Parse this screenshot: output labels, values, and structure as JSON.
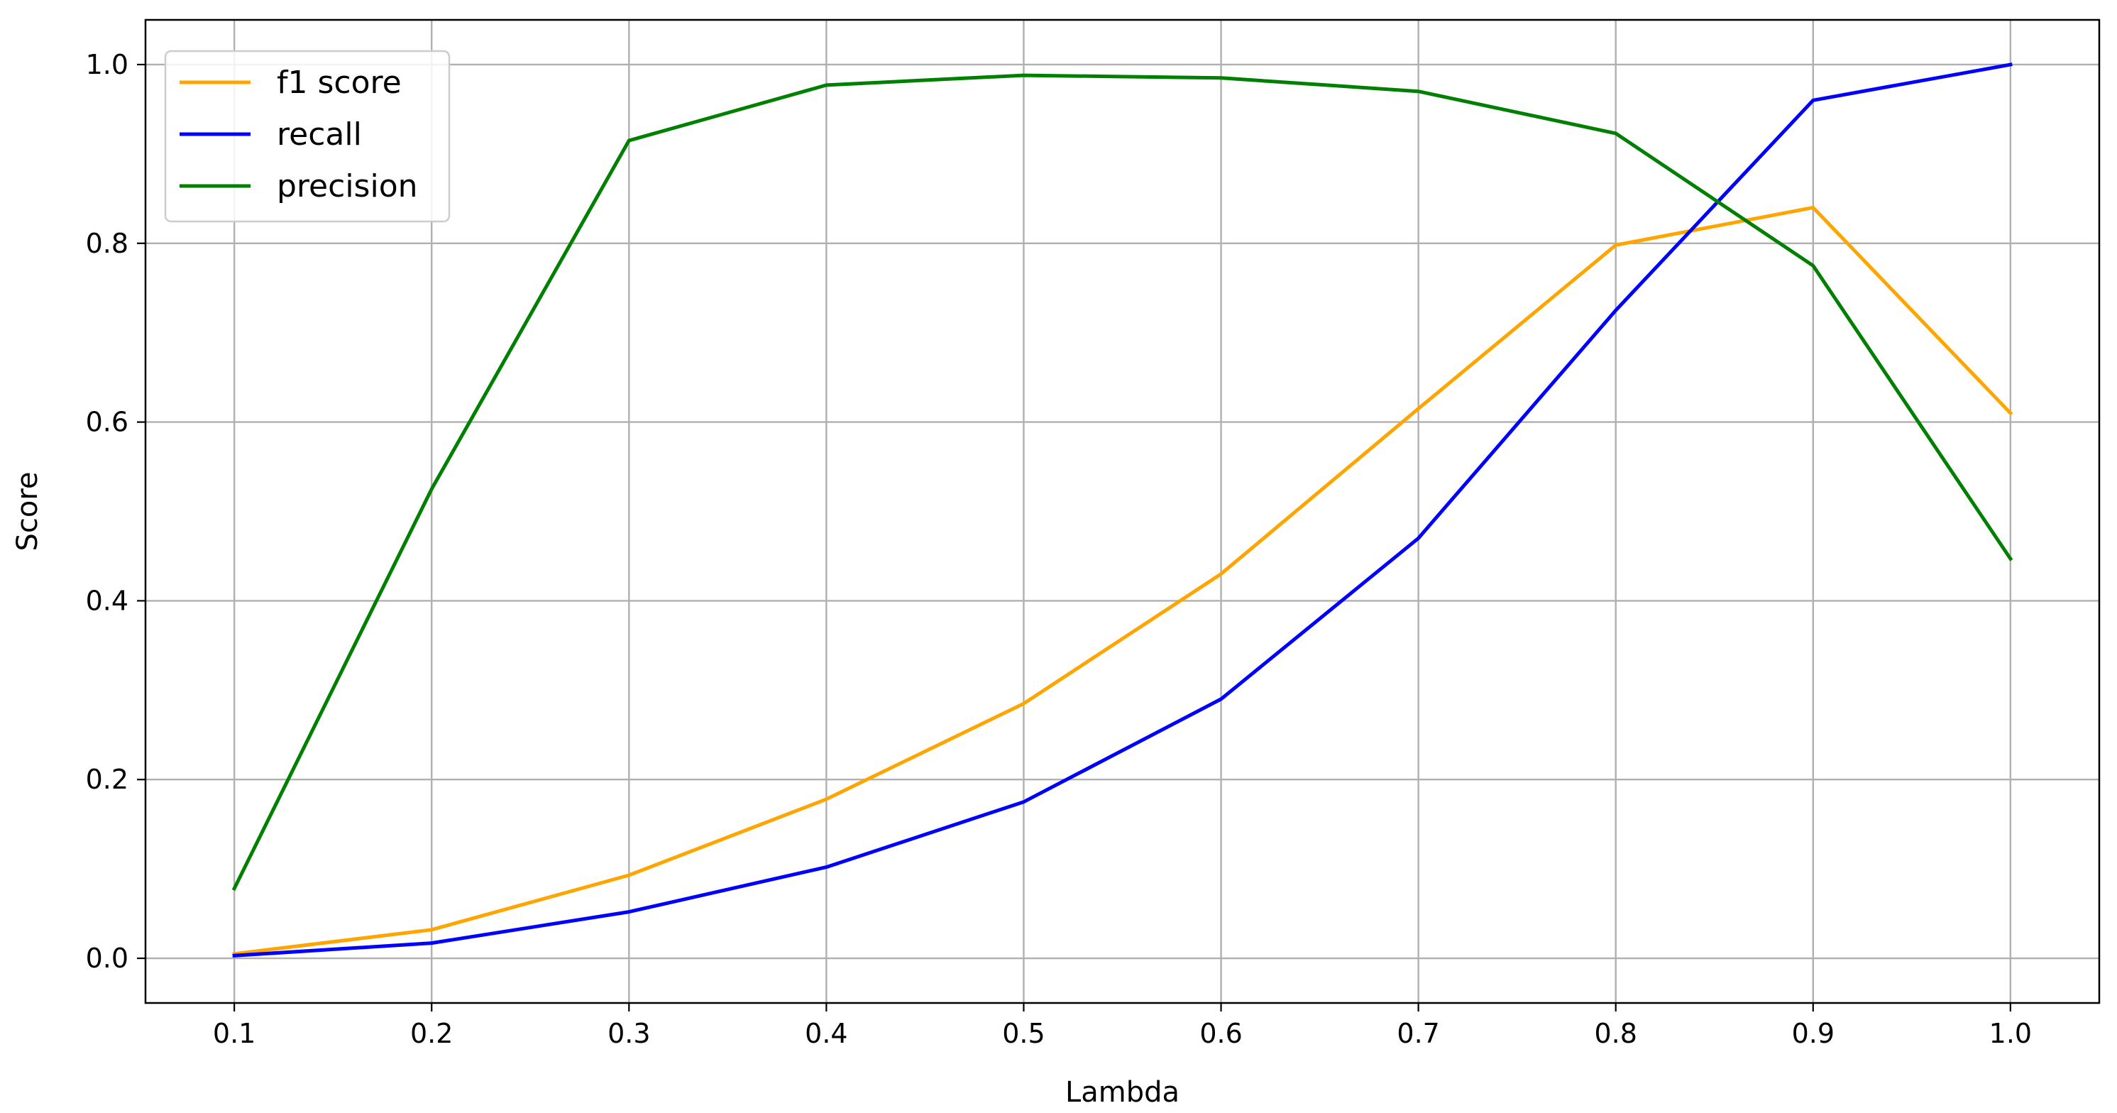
{
  "chart_data": {
    "type": "line",
    "title": "",
    "xlabel": "Lambda",
    "ylabel": "Score",
    "x": [
      0.1,
      0.2,
      0.3,
      0.4,
      0.5,
      0.6,
      0.7,
      0.8,
      0.9,
      1.0
    ],
    "x_tick_labels": [
      "0.1",
      "0.2",
      "0.3",
      "0.4",
      "0.5",
      "0.6",
      "0.7",
      "0.8",
      "0.9",
      "1.0"
    ],
    "y_ticks": [
      0.0,
      0.2,
      0.4,
      0.6,
      0.8,
      1.0
    ],
    "y_tick_labels": [
      "0.0",
      "0.2",
      "0.4",
      "0.6",
      "0.8",
      "1.0"
    ],
    "xlim": [
      0.055,
      1.045
    ],
    "ylim": [
      -0.05,
      1.05
    ],
    "grid": true,
    "legend_position": "top-left",
    "series": [
      {
        "name": "f1 score",
        "color": "#ffa500",
        "values": [
          0.005,
          0.032,
          0.093,
          0.178,
          0.285,
          0.43,
          0.615,
          0.798,
          0.84,
          0.61
        ]
      },
      {
        "name": "recall",
        "color": "#0000ff",
        "values": [
          0.003,
          0.017,
          0.052,
          0.102,
          0.175,
          0.29,
          0.47,
          0.725,
          0.96,
          1.0
        ]
      },
      {
        "name": "precision",
        "color": "#008000",
        "values": [
          0.078,
          0.525,
          0.915,
          0.977,
          0.988,
          0.985,
          0.97,
          0.923,
          0.775,
          0.447
        ]
      }
    ]
  }
}
